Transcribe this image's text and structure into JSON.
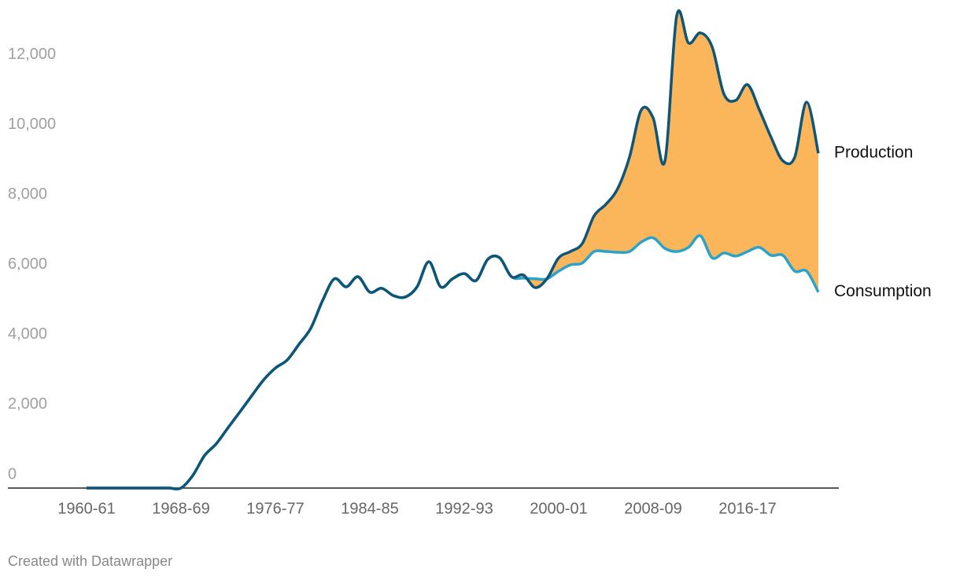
{
  "chart_data": {
    "type": "line",
    "categories": [
      "1960-61",
      null,
      null,
      null,
      null,
      null,
      null,
      null,
      "1968-69",
      null,
      null,
      null,
      null,
      null,
      null,
      null,
      "1976-77",
      null,
      null,
      null,
      null,
      null,
      null,
      null,
      "1984-85",
      null,
      null,
      null,
      null,
      null,
      null,
      null,
      "1992-93",
      null,
      null,
      null,
      null,
      null,
      null,
      null,
      "2000-01",
      null,
      null,
      null,
      null,
      null,
      null,
      null,
      "2008-09",
      null,
      null,
      null,
      null,
      null,
      null,
      null,
      "2016-17",
      null,
      null,
      null,
      null,
      null,
      null
    ],
    "series": [
      {
        "name": "Production",
        "color": "#0e5577",
        "values": [
          0,
          0,
          0,
          0,
          0,
          0,
          0,
          0,
          0,
          360,
          930,
          1270,
          1730,
          2180,
          2640,
          3090,
          3430,
          3660,
          4110,
          4570,
          5360,
          5980,
          5750,
          6040,
          5600,
          5710,
          5500,
          5460,
          5750,
          6470,
          5750,
          5980,
          6130,
          5930,
          6540,
          6580,
          6040,
          6090,
          5730,
          5980,
          6580,
          6760,
          6990,
          7780,
          8110,
          8560,
          9460,
          10810,
          10580,
          9350,
          13500,
          12720,
          13010,
          12610,
          11260,
          11080,
          11530,
          10810,
          10020,
          9350,
          9460,
          11030,
          9570
        ]
      },
      {
        "name": "Consumption",
        "color": "#2ba3c9",
        "values": [
          0,
          0,
          0,
          0,
          0,
          0,
          0,
          0,
          0,
          360,
          930,
          1270,
          1730,
          2180,
          2640,
          3090,
          3430,
          3660,
          4110,
          4570,
          5360,
          5980,
          5750,
          6040,
          5600,
          5710,
          5500,
          5460,
          5750,
          6470,
          5750,
          5980,
          6130,
          5930,
          6540,
          6580,
          6040,
          6000,
          5980,
          5980,
          6200,
          6380,
          6430,
          6760,
          6760,
          6740,
          6760,
          7030,
          7150,
          6850,
          6760,
          6880,
          7210,
          6580,
          6720,
          6630,
          6760,
          6880,
          6650,
          6650,
          6200,
          6200,
          5600
        ]
      }
    ],
    "fill_between_color": "#fbb65c",
    "ylim": [
      0,
      13500
    ],
    "yticks": [
      0,
      {
        "value": 2000,
        "label": "2,000"
      },
      {
        "value": 4000,
        "label": "4,000"
      },
      {
        "value": 6000,
        "label": "6,000"
      },
      {
        "value": 8000,
        "label": "8,000"
      },
      {
        "value": 10000,
        "label": "10,000"
      },
      {
        "value": 12000,
        "label": "12,000"
      }
    ],
    "grid": false,
    "note": "Created with Datawrapper"
  }
}
